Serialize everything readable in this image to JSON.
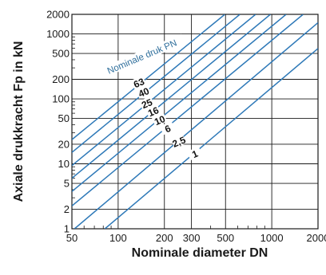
{
  "chart_data": {
    "type": "line",
    "title": "",
    "xlabel": "Nominale diameter DN",
    "ylabel": "Axiale drukkracht Fp in kN",
    "xscale": "log",
    "yscale": "log",
    "xlim": [
      50,
      2000
    ],
    "ylim": [
      1,
      2000
    ],
    "x_ticks": [
      50,
      100,
      200,
      300,
      500,
      1000,
      2000
    ],
    "x_tick_labels": [
      "50",
      "100",
      "200",
      "300",
      "500",
      "1000",
      "2000"
    ],
    "y_ticks": [
      1,
      2,
      5,
      10,
      20,
      50,
      100,
      200,
      500,
      1000,
      2000
    ],
    "y_tick_labels": [
      "1",
      "2",
      "5",
      "10",
      "20",
      "50",
      "100",
      "200",
      "500",
      "1000",
      "2000"
    ],
    "grid": true,
    "annotation": "Nominale druk PN",
    "series_color": "#2e79b8",
    "series": [
      {
        "name": "1",
        "x": [
          82,
          2000
        ],
        "y": [
          1,
          597
        ]
      },
      {
        "name": "2.5",
        "x": [
          52,
          2000
        ],
        "y": [
          1,
          1490
        ]
      },
      {
        "name": "6",
        "x": [
          50,
          1600
        ],
        "y": [
          2.25,
          2000
        ]
      },
      {
        "name": "10",
        "x": [
          50,
          1240
        ],
        "y": [
          3.75,
          2000
        ]
      },
      {
        "name": "16",
        "x": [
          50,
          980
        ],
        "y": [
          6,
          2000
        ]
      },
      {
        "name": "25",
        "x": [
          50,
          785
        ],
        "y": [
          9.4,
          2000
        ]
      },
      {
        "name": "40",
        "x": [
          50,
          620
        ],
        "y": [
          15,
          2000
        ]
      },
      {
        "name": "63",
        "x": [
          50,
          495
        ],
        "y": [
          23.6,
          2000
        ]
      }
    ],
    "series_labels": [
      "1",
      "2,5",
      "6",
      "10",
      "16",
      "25",
      "40",
      "63"
    ]
  }
}
